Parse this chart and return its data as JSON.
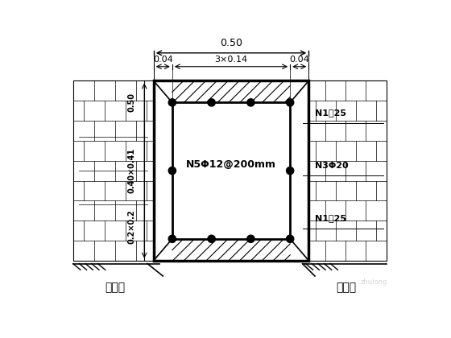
{
  "bg_color": "#ffffff",
  "line_color": "#000000",
  "dim_top_total": "0.50",
  "dim_left": "0.04",
  "dim_mid": "3×0.14",
  "dim_right": "0.04",
  "dim_vert1": "0.50",
  "dim_vert2": "0.40×0.41",
  "dim_vert3": "0.2×0.2",
  "label_center": "N5Φ12@200mm",
  "label_right1": "N1⌖25",
  "label_right2": "N3Φ20",
  "label_right3": "N1⌖25",
  "label_bottom_left": "挡土墙",
  "label_bottom_right": "挡土墙"
}
